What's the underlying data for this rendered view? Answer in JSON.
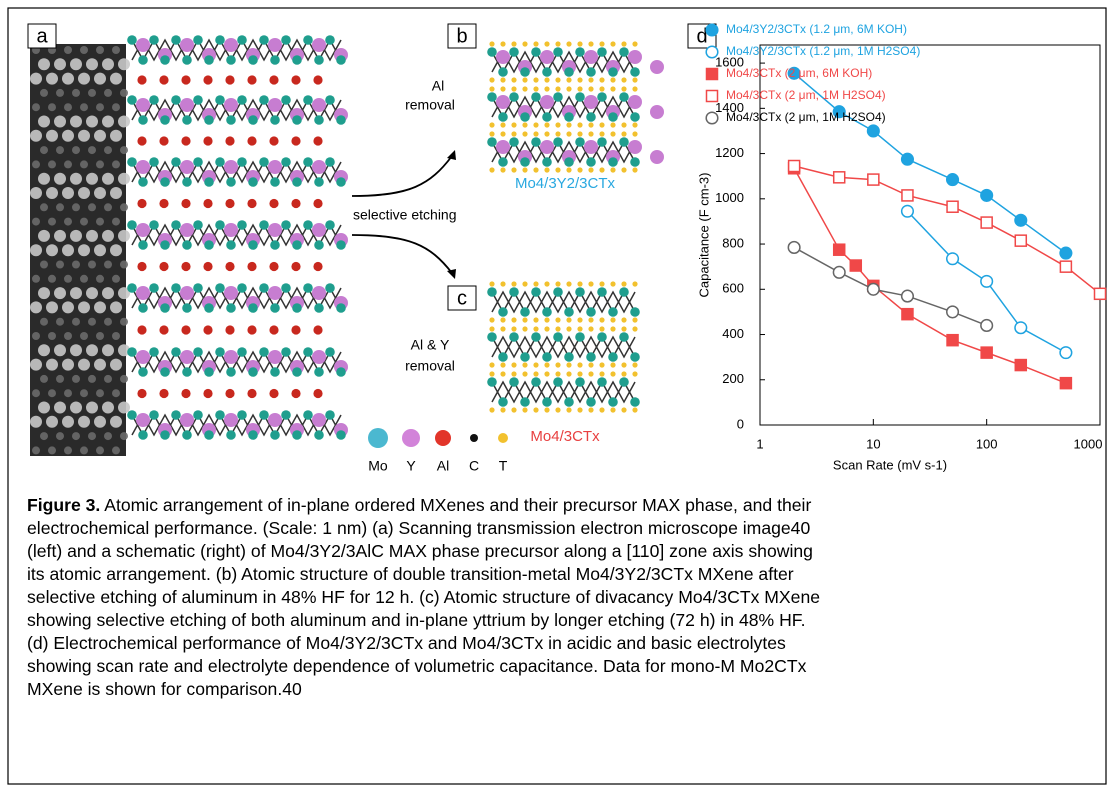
{
  "panel_labels": [
    "a",
    "b",
    "c",
    "d"
  ],
  "schematic": {
    "step_b": [
      "Al",
      "removal"
    ],
    "step_c": [
      "Al & Y",
      "removal"
    ],
    "arrow_label": "selective etching",
    "product_b": "Mo4/3Y2/3CTx",
    "product_c": "Mo4/3CTx",
    "atom_legend": [
      "Mo",
      "Y",
      "Al",
      "C",
      "T"
    ]
  },
  "chart_data": {
    "type": "line",
    "xlabel": "Scan Rate (mV s-1)",
    "ylabel": "Capacitance (F cm-3)",
    "xscale": "log",
    "xlim": [
      1,
      1000
    ],
    "xticks": [
      1,
      10,
      100,
      1000
    ],
    "ylim": [
      0,
      1680
    ],
    "yticks": [
      0,
      200,
      400,
      600,
      800,
      1000,
      1200,
      1400,
      1600
    ],
    "legend": "top-right",
    "series": [
      {
        "name": "Mo4/3Y2/3CTx (1.2 μm, 6M KOH)",
        "color": "#1fa3e0",
        "marker": "circle",
        "filled": true,
        "x": [
          2,
          5,
          10,
          20,
          50,
          100,
          200,
          500
        ],
        "values": [
          1555,
          1385,
          1300,
          1175,
          1085,
          1015,
          905,
          760
        ]
      },
      {
        "name": "Mo4/3Y2/3CTx (1.2 μm, 1M H2SO4)",
        "color": "#1fa3e0",
        "marker": "circle",
        "filled": false,
        "x": [
          20,
          50,
          100,
          200,
          500
        ],
        "values": [
          945,
          735,
          635,
          430,
          320
        ]
      },
      {
        "name": "Mo4/3CTx (2 μm, 6M KOH)",
        "color": "#f04848",
        "marker": "square",
        "filled": true,
        "x": [
          2,
          5,
          7,
          10,
          20,
          50,
          100,
          200,
          500
        ],
        "values": [
          1135,
          775,
          705,
          615,
          490,
          375,
          320,
          265,
          185
        ]
      },
      {
        "name": "Mo4/3CTx (2 μm, 1M H2SO4)",
        "color": "#f04848",
        "marker": "square",
        "filled": false,
        "x": [
          2,
          5,
          10,
          20,
          50,
          100,
          200,
          500,
          1000
        ],
        "values": [
          1145,
          1095,
          1085,
          1015,
          965,
          895,
          815,
          700,
          580
        ]
      },
      {
        "name": "Mo4/3CTx (2 μm, 1M H2SO4)",
        "color": "#666666",
        "marker": "circle",
        "filled": false,
        "x": [
          2,
          5,
          10,
          20,
          50,
          100
        ],
        "values": [
          785,
          675,
          600,
          570,
          500,
          440
        ]
      }
    ]
  },
  "caption": {
    "label": "Figure 3.",
    "lines": [
      " Atomic arrangement of in-plane ordered MXenes and their precursor MAX phase, and their",
      "electrochemical performance. (Scale: 1 nm) (a) Scanning transmission electron microscope image40",
      "(left) and a schematic (right) of Mo4/3Y2/3AlC MAX phase precursor along a [110] zone axis showing",
      "its atomic arrangement. (b) Atomic structure of double transition-metal Mo4/3Y2/3CTx MXene after",
      "selective etching of aluminum in 48% HF for 12 h. (c) Atomic structure of divacancy Mo4/3CTx MXene",
      "showing selective etching of both aluminum and in-plane yttrium by longer etching (72 h) in 48% HF.",
      "(d) Electrochemical performance of Mo4/3Y2/3CTx and Mo4/3CTx in acidic and basic electrolytes",
      "showing scan rate and electrolyte dependence of volumetric capacitance. Data for mono-M Mo2CTx",
      "MXene is shown for comparison.40"
    ]
  }
}
